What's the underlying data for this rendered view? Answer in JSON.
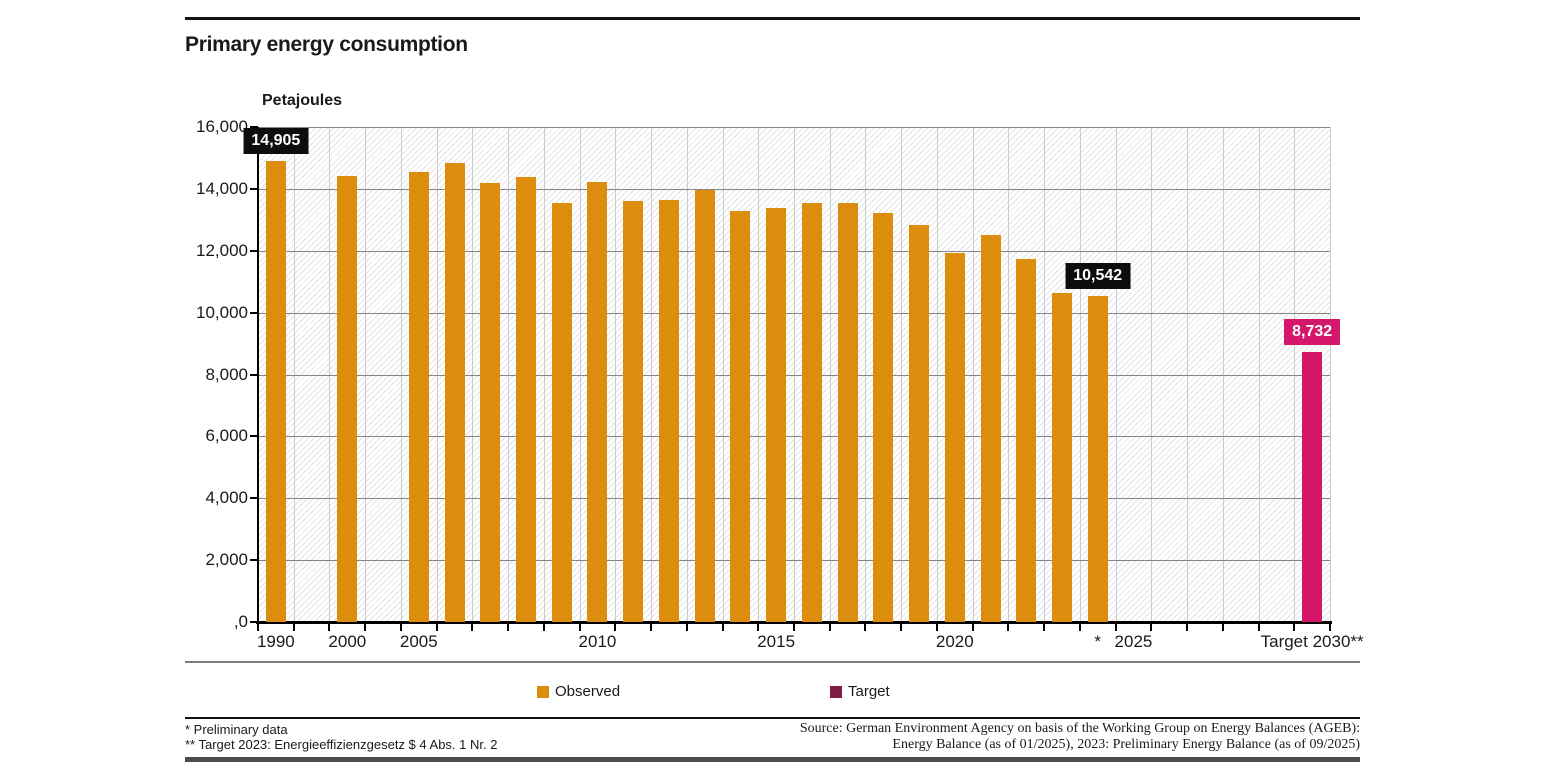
{
  "header": {
    "title": "Primary energy consumption"
  },
  "chart": {
    "unit_label": "Petajoules"
  },
  "chart_data": {
    "type": "bar",
    "title": "Primary energy consumption",
    "xlabel": "",
    "ylabel": "Petajoules",
    "ylim": [
      0,
      16000
    ],
    "y_tick_step": 2000,
    "grid": true,
    "hatched_background": true,
    "n_columns": 30,
    "legend_position": "bottom",
    "series": [
      {
        "name": "Observed",
        "color": "#dd8d0e",
        "points": [
          {
            "col": 0,
            "x": "1990",
            "y": 14905
          },
          {
            "col": 2,
            "x": "2000",
            "y": 14401
          },
          {
            "col": 4,
            "x": "2005",
            "y": 14558
          },
          {
            "col": 5,
            "x": "2006",
            "y": 14837
          },
          {
            "col": 6,
            "x": "2007",
            "y": 14197
          },
          {
            "col": 7,
            "x": "2008",
            "y": 14380
          },
          {
            "col": 8,
            "x": "2009",
            "y": 13531
          },
          {
            "col": 9,
            "x": "2010",
            "y": 14217
          },
          {
            "col": 10,
            "x": "2011",
            "y": 13599
          },
          {
            "col": 11,
            "x": "2012",
            "y": 13652
          },
          {
            "col": 12,
            "x": "2013",
            "y": 13959
          },
          {
            "col": 13,
            "x": "2014",
            "y": 13282
          },
          {
            "col": 14,
            "x": "2015",
            "y": 13386
          },
          {
            "col": 15,
            "x": "2016",
            "y": 13546
          },
          {
            "col": 16,
            "x": "2017",
            "y": 13550
          },
          {
            "col": 17,
            "x": "2018",
            "y": 13210
          },
          {
            "col": 18,
            "x": "2019",
            "y": 12830
          },
          {
            "col": 19,
            "x": "2020",
            "y": 11930
          },
          {
            "col": 20,
            "x": "2021",
            "y": 12500
          },
          {
            "col": 21,
            "x": "2022",
            "y": 11720
          },
          {
            "col": 22,
            "x": "2023",
            "y": 10650
          },
          {
            "col": 23,
            "x": "2024",
            "y": 10542,
            "preliminary": true
          }
        ]
      },
      {
        "name": "Target",
        "color": "#d4176b",
        "points": [
          {
            "col": 29,
            "x": "Target 2030",
            "y": 8732
          }
        ]
      }
    ],
    "y_tick_labels": [
      "16,000",
      "14,000",
      "12,000",
      "10,000",
      "8,000",
      "6,000",
      "4,000",
      "2,000",
      ",0"
    ],
    "x_tick_labels": [
      {
        "col": 0,
        "text": "1990"
      },
      {
        "col": 2,
        "text": "2000"
      },
      {
        "col": 4,
        "text": "2005"
      },
      {
        "col": 9,
        "text": "2010"
      },
      {
        "col": 14,
        "text": "2015"
      },
      {
        "col": 19,
        "text": "2020"
      },
      {
        "col": 23,
        "text": "*"
      },
      {
        "col": 24,
        "text": "2025"
      },
      {
        "col": 29,
        "text": "Target 2030**"
      }
    ],
    "annotations": [
      {
        "col": 0,
        "y": 14905,
        "text": "14,905",
        "bg": "#0d0d0d",
        "fg": "#ffffff"
      },
      {
        "col": 23,
        "y": 10542,
        "text": "10,542",
        "bg": "#0d0d0d",
        "fg": "#ffffff"
      },
      {
        "col": 29,
        "y": 8732,
        "text": "8,732",
        "bg": "#d4176b",
        "fg": "#ffffff"
      }
    ]
  },
  "legend": {
    "items": [
      {
        "label": "Observed",
        "swatch": "#dd8d0e"
      },
      {
        "label": "Target",
        "swatch": "#7f1c44"
      }
    ]
  },
  "footnotes": {
    "line1": "* Preliminary data",
    "line2": "** Target 2023: Energieeffizienzgesetz $ 4 Abs. 1 Nr. 2"
  },
  "source": {
    "line1": "Source: German Environment Agency on basis of the Working Group on Energy Balances (AGEB):",
    "line2": "Energy Balance (as of 01/2025), 2023: Preliminary Energy Balance (as of 09/2025)"
  }
}
